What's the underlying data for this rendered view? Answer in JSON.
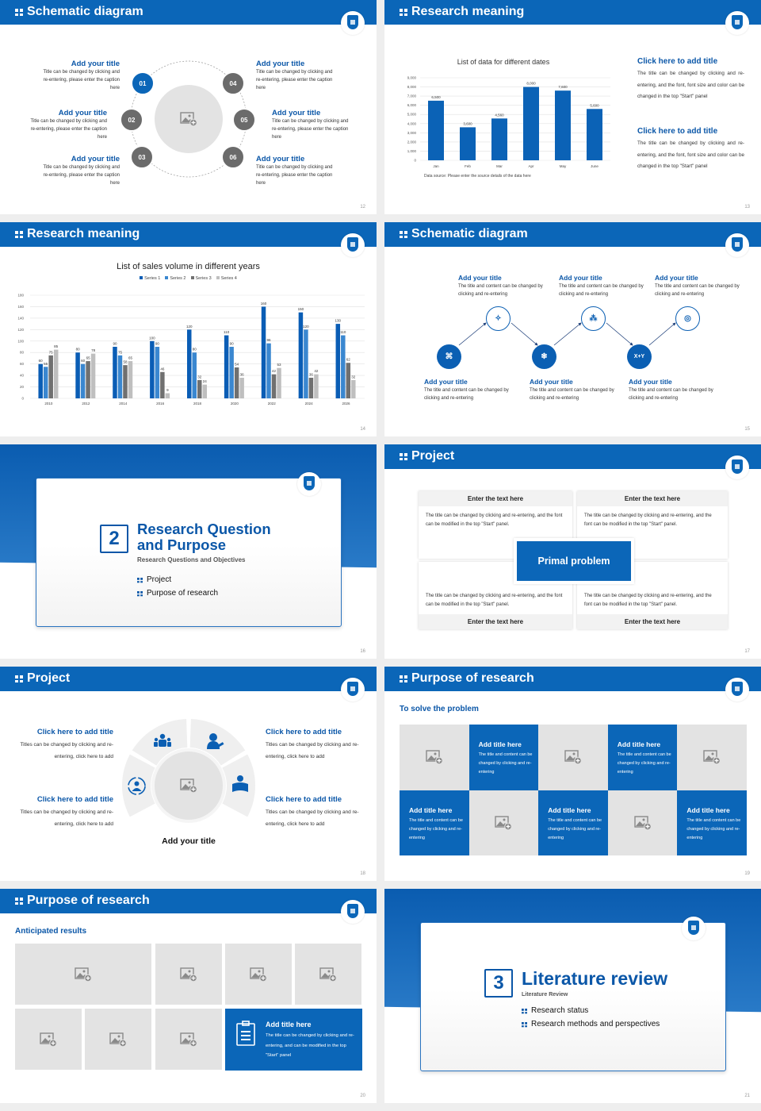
{
  "colors": {
    "primary": "#0b66b8",
    "gray_circle": "#6b6b6b",
    "placeholder": "#e3e3e3"
  },
  "s12": {
    "title": "Schematic diagram",
    "page": "12",
    "items": [
      {
        "num": "01",
        "title": "Add your title",
        "body": "Title can be changed by clicking and re-entering, please enter the caption here"
      },
      {
        "num": "02",
        "title": "Add your title",
        "body": "Title can be changed by clicking and re-entering, please enter the caption here"
      },
      {
        "num": "03",
        "title": "Add your title",
        "body": "Title can be changed by clicking and re-entering, please enter the caption here"
      },
      {
        "num": "04",
        "title": "Add your title",
        "body": "Title can be changed by clicking and re-entering, please enter the caption here"
      },
      {
        "num": "05",
        "title": "Add your title",
        "body": "Title can be changed by clicking and re-entering, please enter the caption here"
      },
      {
        "num": "06",
        "title": "Add your title",
        "body": "Title can be changed by clicking and re-entering, please enter the caption here"
      }
    ]
  },
  "s13": {
    "title": "Research meaning",
    "page": "13",
    "source": "Data source: Please enter the source details of the data here",
    "blocks": [
      {
        "title": "Click here to add title",
        "body": "The title can be changed by clicking and re-entering, and the font, font size and color can be changed in the top \"Start\" panel"
      },
      {
        "title": "Click here to add title",
        "body": "The title can be changed by clicking and re-entering, and the font, font size and color can be changed in the top \"Start\" panel"
      }
    ]
  },
  "s14": {
    "title": "Research meaning",
    "page": "14"
  },
  "s15": {
    "title": "Schematic diagram",
    "page": "15",
    "xy_icon": "X+Y",
    "items": [
      {
        "title": "Add your title",
        "body": "The title and content can be changed by clicking and re-entering"
      },
      {
        "title": "Add your title",
        "body": "The title and content can be changed by clicking and re-entering"
      },
      {
        "title": "Add your title",
        "body": "The title and content can be changed by clicking and re-entering"
      },
      {
        "title": "Add your title",
        "body": "The title and content can be changed by clicking and re-entering"
      },
      {
        "title": "Add your title",
        "body": "The title and content can be changed by clicking and re-entering"
      },
      {
        "title": "Add your title",
        "body": "The title and content can be changed by clicking and re-entering"
      }
    ]
  },
  "s16": {
    "number": "2",
    "title_line1": "Research Question",
    "title_line2": "and Purpose",
    "subtitle": "Research Questions and Objectives",
    "bullets": [
      "Project",
      "Purpose of research"
    ],
    "page": "16"
  },
  "s17": {
    "title": "Project",
    "page": "17",
    "center": "Primal problem",
    "cards": [
      {
        "head": "Enter the text here",
        "body": "The title can be changed by clicking and re-entering, and the font can be modified in the top \"Start\" panel."
      },
      {
        "head": "Enter the text here",
        "body": "The title can be changed by clicking and re-entering, and the font can be modified in the top \"Start\" panel."
      },
      {
        "head": "Enter the text here",
        "body": "The title can be changed by clicking and re-entering, and the font can be modified in the top \"Start\" panel."
      },
      {
        "head": "Enter the text here",
        "body": "The title can be changed by clicking and re-entering, and the font can be modified in the top \"Start\" panel."
      }
    ]
  },
  "s18": {
    "title": "Project",
    "page": "18",
    "center_title": "Add your title",
    "items": [
      {
        "title": "Click here to add title",
        "body": "Titles can be changed by clicking and re-entering, click here to add"
      },
      {
        "title": "Click here to add title",
        "body": "Titles can be changed by clicking and re-entering, click here to add"
      },
      {
        "title": "Click here to add title",
        "body": "Titles can be changed by clicking and re-entering, click here to add"
      },
      {
        "title": "Click here to add title",
        "body": "Titles can be changed by clicking and re-entering, click here to add"
      }
    ]
  },
  "s19": {
    "title": "Purpose of research",
    "page": "19",
    "subtitle": "To solve the problem",
    "tile_title": "Add title here",
    "tile_body": "The title and content can be changed by clicking and re-entering"
  },
  "s20": {
    "title": "Purpose of research",
    "page": "20",
    "subtitle": "Anticipated results",
    "tile_title": "Add title here",
    "tile_body": "The title can be changed by clicking and re-entering, and can be modified in the top \"Start\" panel"
  },
  "s21": {
    "number": "3",
    "title": "Literature review",
    "subtitle": "Literature Review",
    "bullets": [
      "Research status",
      "Research methods and perspectives"
    ],
    "page": "21"
  },
  "chart_data": [
    {
      "type": "bar",
      "title": "List of data for different dates",
      "categories": [
        "Jan",
        "Feb",
        "Mar",
        "Apr",
        "May",
        "June"
      ],
      "values": [
        6500,
        3600,
        4560,
        8000,
        7600,
        5600
      ],
      "value_labels": [
        "6,500",
        "3,600",
        "4,560",
        "8,000",
        "7,600",
        "5,600"
      ],
      "ylim": [
        0,
        9000
      ],
      "yticks": [
        "0",
        "1,000",
        "2,000",
        "3,000",
        "4,000",
        "5,000",
        "6,000",
        "7,000",
        "8,000",
        "9,000"
      ],
      "grid": true,
      "color": "#0b62b6"
    },
    {
      "type": "bar",
      "title": "List of sales volume in different years",
      "categories": [
        "2010",
        "2012",
        "2014",
        "2016",
        "2018",
        "2020",
        "2022",
        "2024",
        "2026"
      ],
      "ylim": [
        0,
        180
      ],
      "yticks": [
        "0",
        "20",
        "40",
        "60",
        "80",
        "100",
        "120",
        "140",
        "160",
        "180"
      ],
      "grid": true,
      "legend": "top",
      "series": [
        {
          "name": "Series 1",
          "color": "#0a5db5",
          "values": [
            60,
            80,
            90,
            100,
            120,
            110,
            160,
            150,
            130
          ]
        },
        {
          "name": "Series 2",
          "color": "#3a87d0",
          "values": [
            55,
            60,
            75,
            90,
            80,
            90,
            96,
            120,
            110
          ]
        },
        {
          "name": "Series 3",
          "color": "#707070",
          "values": [
            75,
            65,
            58,
            46,
            32,
            54,
            42,
            36,
            62
          ]
        },
        {
          "name": "Series 4",
          "color": "#bfbfbf",
          "values": [
            85,
            78,
            65,
            9,
            24,
            36,
            53,
            42,
            32
          ]
        }
      ]
    }
  ]
}
